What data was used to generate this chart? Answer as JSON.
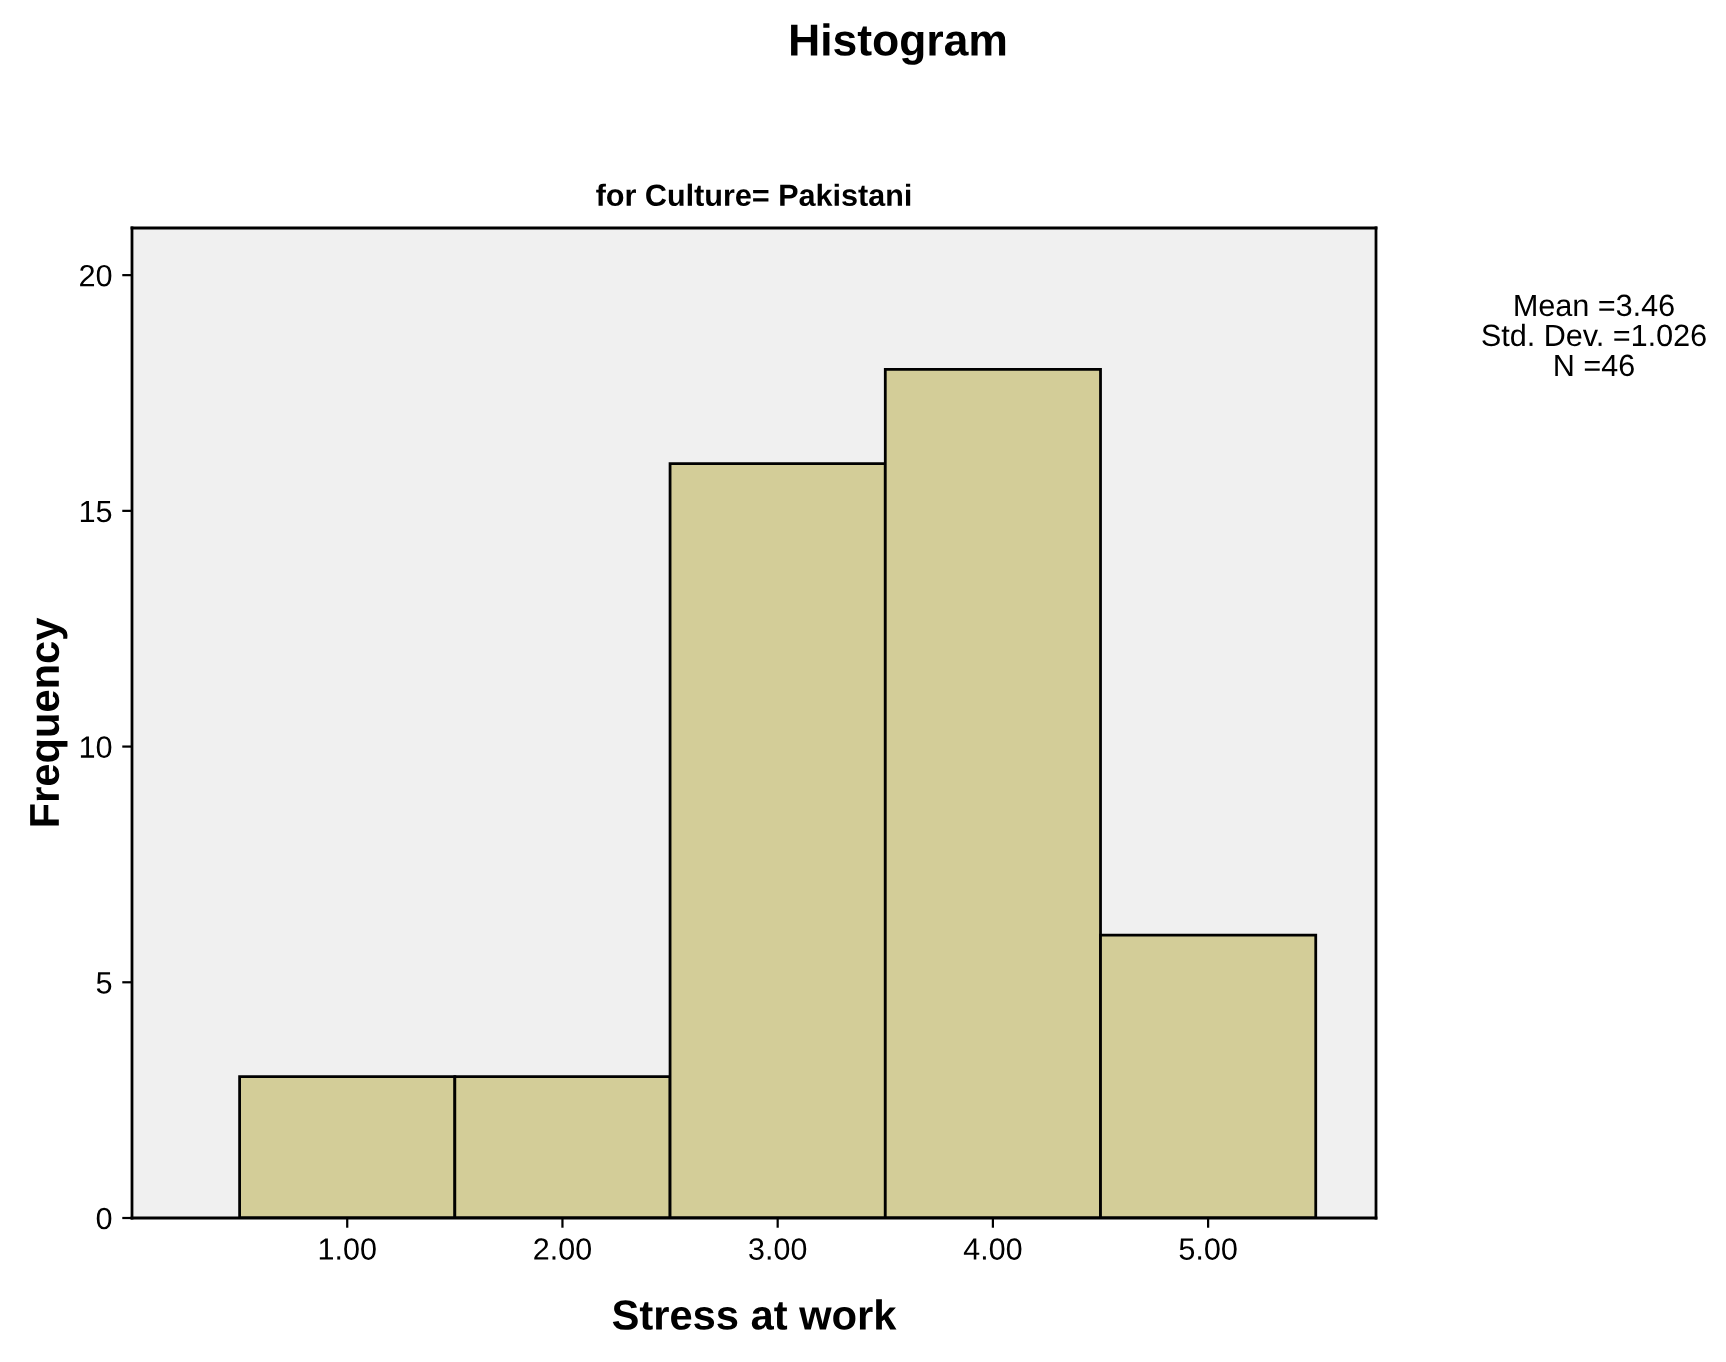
{
  "chart_data": {
    "type": "histogram",
    "title": "Histogram",
    "subtitle": "for Culture= Pakistani",
    "xlabel": "Stress at work",
    "ylabel": "Frequency",
    "bins": [
      0.5,
      1.5,
      2.5,
      3.5,
      4.5,
      5.5
    ],
    "values": [
      3,
      3,
      16,
      18,
      6
    ],
    "color": "#d3cd98",
    "xlim": [
      0.0,
      5.78
    ],
    "ylim": [
      0,
      21
    ],
    "xticks": [
      {
        "value": 1,
        "label": "1.00"
      },
      {
        "value": 2,
        "label": "2.00"
      },
      {
        "value": 3,
        "label": "3.00"
      },
      {
        "value": 4,
        "label": "4.00"
      },
      {
        "value": 5,
        "label": "5.00"
      }
    ],
    "yticks": [
      0,
      5,
      10,
      15,
      20
    ],
    "grid": false,
    "legend": false,
    "annotations": [
      "Mean =3.46",
      "Std. Dev. =1.026",
      "N =46"
    ]
  }
}
